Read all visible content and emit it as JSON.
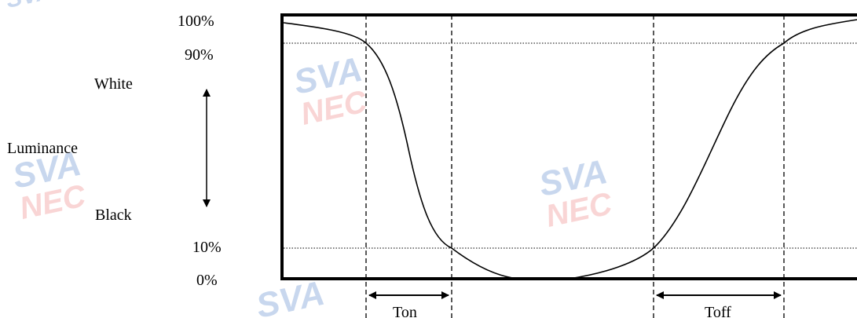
{
  "diagram": {
    "levels": {
      "top": "100%",
      "high": "90%",
      "low": "10%",
      "bottom": "0%"
    },
    "axis": {
      "label": "Luminance",
      "upper": "White",
      "lower": "Black"
    },
    "intervals": {
      "on": "Ton",
      "off": "Toff"
    },
    "watermark": {
      "line1": "SVA",
      "line2": "NEC",
      "colors": [
        "#7fa6d6",
        "#f2a6a6"
      ]
    }
  }
}
